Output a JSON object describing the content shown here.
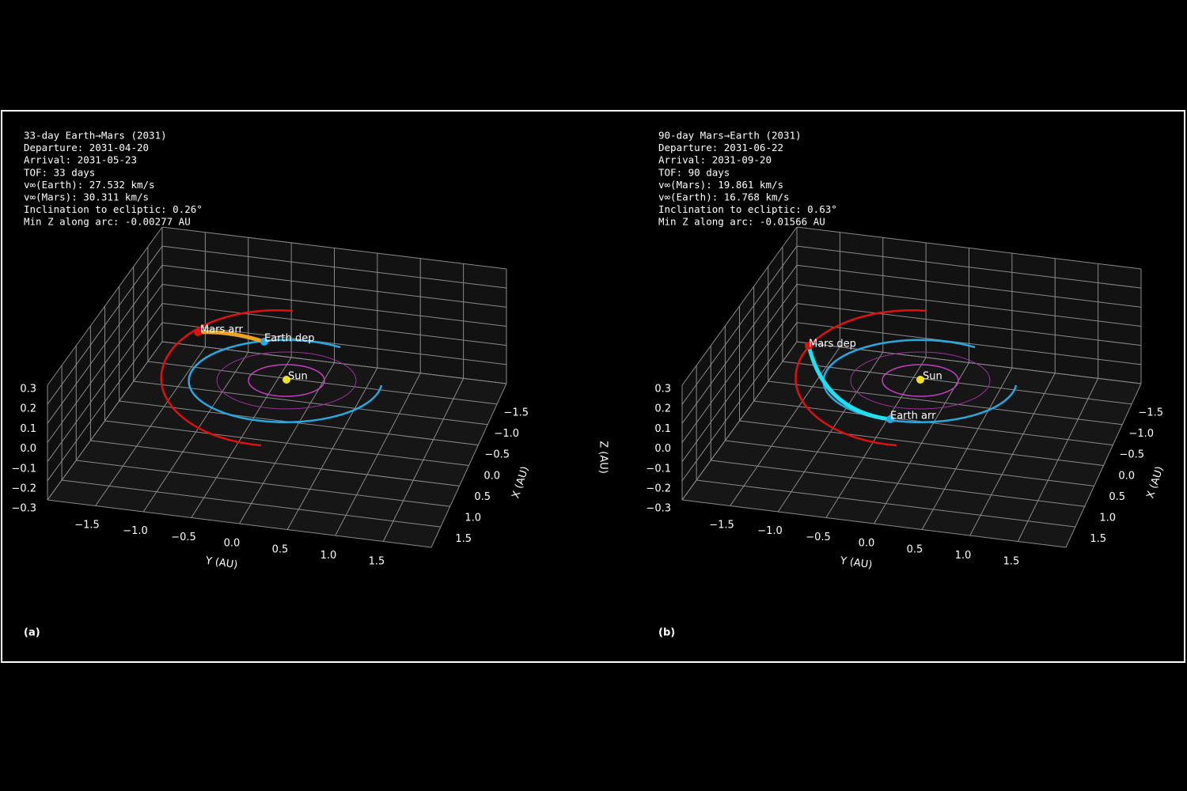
{
  "panels": [
    {
      "label": "(a)",
      "info": [
        "33-day Earth→Mars (2031)",
        "Departure: 2031-04-20",
        "Arrival:   2031-05-23",
        "TOF: 33 days",
        "v∞(Earth):  27.532 km/s",
        "v∞(Mars):  30.311 km/s",
        "Inclination to ecliptic:  0.26°",
        "Min Z along arc: -0.00277 AU"
      ],
      "markers": [
        "Mars arr",
        "Earth dep",
        "Sun"
      ],
      "z_ticks": [
        "0.3",
        "0.2",
        "0.1",
        "0.0",
        "−0.1",
        "−0.2",
        "−0.3"
      ],
      "x_ticks": [
        "−1.5",
        "−1.0",
        "−0.5",
        "0.0",
        "0.5",
        "1.0",
        "1.5"
      ],
      "y_ticks": [
        "−1.5",
        "−1.0",
        "−0.5",
        "0.0",
        "0.5",
        "1.0",
        "1.5"
      ],
      "x_label": "X (AU)",
      "y_label": "Y (AU)"
    },
    {
      "label": "(b)",
      "info": [
        "90-day Mars→Earth (2031)",
        "Departure: 2031-06-22",
        "Arrival:   2031-09-20",
        "TOF: 90 days",
        "v∞(Mars):  19.861 km/s",
        "v∞(Earth):  16.768 km/s",
        "Inclination to ecliptic:  0.63°",
        "Min Z along arc: -0.01566 AU"
      ],
      "markers": [
        "Mars dep",
        "Earth arr",
        "Sun"
      ],
      "z_ticks": [
        "0.3",
        "0.2",
        "0.1",
        "0.0",
        "−0.1",
        "−0.2",
        "−0.3"
      ],
      "x_ticks": [
        "−1.5",
        "−1.0",
        "−0.5",
        "0.0",
        "0.5",
        "1.0",
        "1.5"
      ],
      "y_ticks": [
        "−1.5",
        "−1.0",
        "−0.5",
        "0.0",
        "0.5",
        "1.0",
        "1.5"
      ],
      "x_label": "X (AU)",
      "y_label": "Y (AU)",
      "z_label": "Z (AU)"
    }
  ]
}
